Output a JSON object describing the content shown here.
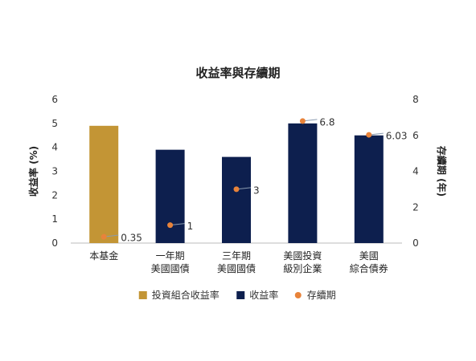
{
  "chart_data": {
    "type": "bar",
    "title": "收益率與存續期",
    "categories": [
      [
        "本基金"
      ],
      [
        "一年期",
        "美國國債"
      ],
      [
        "三年期",
        "美國國債"
      ],
      [
        "美國投資",
        "級別企業"
      ],
      [
        "美國",
        "綜合債券"
      ]
    ],
    "series": [
      {
        "name": "投資組合收益率",
        "type": "bar",
        "axis": "left",
        "color": "#C39535",
        "values": [
          4.9,
          null,
          null,
          null,
          null
        ]
      },
      {
        "name": "收益率",
        "type": "bar",
        "axis": "left",
        "color": "#0D1F4E",
        "values": [
          null,
          3.9,
          3.6,
          5.0,
          4.5
        ]
      },
      {
        "name": "存續期",
        "type": "point",
        "axis": "right",
        "color": "#E8833A",
        "values": [
          0.35,
          1,
          3,
          6.8,
          6.03
        ],
        "labels": [
          "0.35",
          "1",
          "3",
          "6.8",
          "6.03"
        ]
      }
    ],
    "ylabel": "收益率 (%)",
    "y2label": "存續期 (年)",
    "ylim": [
      0,
      6
    ],
    "y2lim": [
      0,
      8
    ],
    "yticks": [
      "0",
      "1",
      "2",
      "3",
      "4",
      "5",
      "6"
    ],
    "y2ticks": [
      "0",
      "2",
      "4",
      "6",
      "8"
    ],
    "legend_position": "bottom",
    "grid": false
  }
}
